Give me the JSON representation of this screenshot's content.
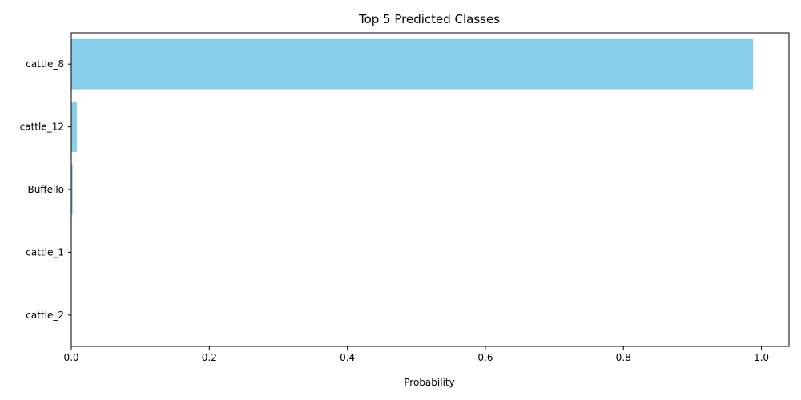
{
  "chart_data": {
    "type": "bar",
    "orientation": "horizontal",
    "title": "Top 5 Predicted Classes",
    "xlabel": "Probability",
    "ylabel": "",
    "categories": [
      "cattle_8",
      "cattle_12",
      "Buffello",
      "cattle_1",
      "cattle_2"
    ],
    "values": [
      0.988,
      0.008,
      0.002,
      0.0005,
      0.0003
    ],
    "xlim": [
      0,
      1.04
    ],
    "xticks": [
      0.0,
      0.2,
      0.4,
      0.6,
      0.8,
      1.0
    ],
    "xtick_labels": [
      "0.0",
      "0.2",
      "0.4",
      "0.6",
      "0.8",
      "1.0"
    ],
    "bar_color": "#87ceeb",
    "grid": false
  }
}
